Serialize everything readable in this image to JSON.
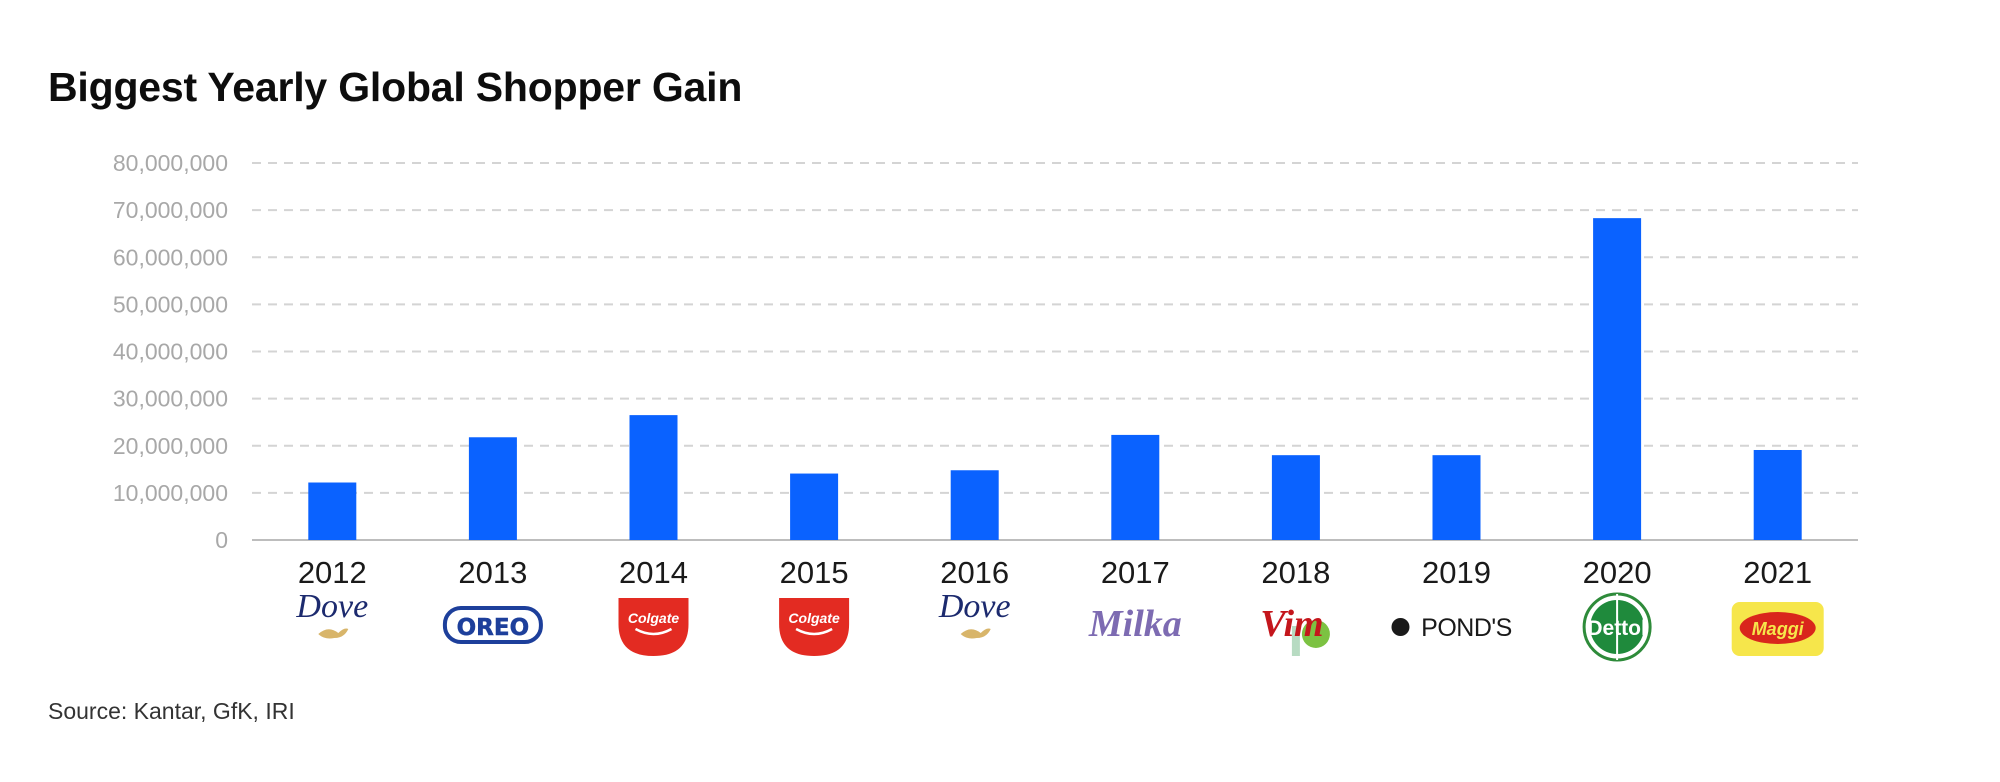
{
  "title": "Biggest Yearly Global Shopper Gain",
  "source": "Source: Kantar, GfK, IRI",
  "colors": {
    "bar": "#0a62ff",
    "grid": "#d4d4d4",
    "axis": "#bdbdbd"
  },
  "chart_data": {
    "type": "bar",
    "title": "Biggest Yearly Global Shopper Gain",
    "xlabel": "",
    "ylabel": "",
    "ylim": [
      0,
      80000000
    ],
    "yticks": [
      0,
      10000000,
      20000000,
      30000000,
      40000000,
      50000000,
      60000000,
      70000000,
      80000000
    ],
    "ytick_labels": [
      "0",
      "10,000,000",
      "20,000,000",
      "30,000,000",
      "40,000,000",
      "50,000,000",
      "60,000,000",
      "70,000,000",
      "80,000,000"
    ],
    "grid": true,
    "categories": [
      "2012",
      "2013",
      "2014",
      "2015",
      "2016",
      "2017",
      "2018",
      "2019",
      "2020",
      "2021"
    ],
    "values": [
      12200000,
      21800000,
      26500000,
      14100000,
      14800000,
      22300000,
      18000000,
      18000000,
      68300000,
      19100000
    ],
    "brands": [
      {
        "text": "Dove",
        "icon": "dove-logo"
      },
      {
        "text": "OREO",
        "icon": "oreo-logo"
      },
      {
        "text": "Colgate",
        "icon": "colgate-logo"
      },
      {
        "text": "Colgate",
        "icon": "colgate-logo"
      },
      {
        "text": "Dove",
        "icon": "dove-logo"
      },
      {
        "text": "Milka",
        "icon": "milka-logo"
      },
      {
        "text": "Vim",
        "icon": "vim-logo"
      },
      {
        "text": "POND'S",
        "icon": "ponds-logo"
      },
      {
        "text": "Dettol",
        "icon": "dettol-logo"
      },
      {
        "text": "Maggi",
        "icon": "maggi-logo"
      }
    ]
  }
}
